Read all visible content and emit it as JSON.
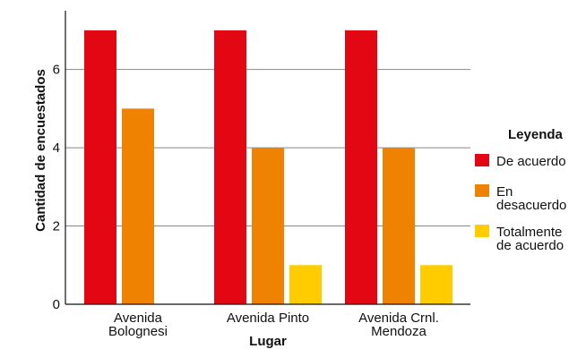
{
  "chart_data": {
    "type": "bar",
    "categories": [
      [
        "Avenida",
        "Bolognesi"
      ],
      [
        "Avenida Pinto"
      ],
      [
        "Avenida Crnl.",
        "Mendoza"
      ]
    ],
    "series": [
      {
        "name": [
          "De acuerdo"
        ],
        "color": "#e30613",
        "values": [
          7,
          7,
          7
        ]
      },
      {
        "name": [
          "En",
          "desacuerdo"
        ],
        "color": "#ef8200",
        "values": [
          5,
          4,
          4
        ]
      },
      {
        "name": [
          "Totalmente",
          "de acuerdo"
        ],
        "color": "#ffcc00",
        "values": [
          0,
          1,
          1
        ]
      }
    ],
    "xlabel": "Lugar",
    "ylabel": "Cantidad de encuestados",
    "legend_title": "Leyenda",
    "legend_position": "right",
    "yticks": [
      0,
      2,
      4,
      6
    ],
    "ylim": [
      0,
      7.5
    ],
    "grid": "horizontal"
  }
}
